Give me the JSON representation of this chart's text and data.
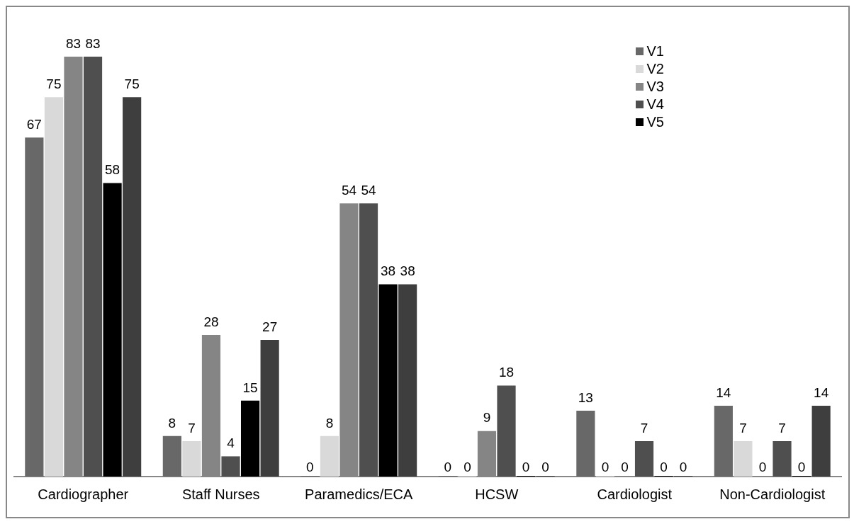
{
  "chart_data": {
    "type": "bar",
    "categories": [
      "Cardiographer",
      "Staff Nurses",
      "Paramedics/ECA",
      "HCSW",
      "Cardiologist",
      "Non-Cardiologist"
    ],
    "series": [
      {
        "name": "V1",
        "color": "#686868",
        "values": [
          67,
          8,
          0,
          0,
          13,
          14
        ]
      },
      {
        "name": "V2",
        "color": "#d9d9d9",
        "values": [
          75,
          7,
          8,
          0,
          0,
          7
        ]
      },
      {
        "name": "V3",
        "color": "#858585",
        "values": [
          83,
          28,
          54,
          9,
          0,
          0
        ]
      },
      {
        "name": "V4",
        "color": "#4f4f4f",
        "values": [
          83,
          4,
          54,
          18,
          7,
          7
        ]
      },
      {
        "name": "V5",
        "color": "#000000",
        "values": [
          58,
          15,
          38,
          0,
          0,
          0
        ]
      },
      {
        "color": "#3e3e3e",
        "values": [
          75,
          27,
          38,
          0,
          0,
          14
        ]
      }
    ],
    "data_labels": true,
    "legend": "top right",
    "grid": false
  }
}
